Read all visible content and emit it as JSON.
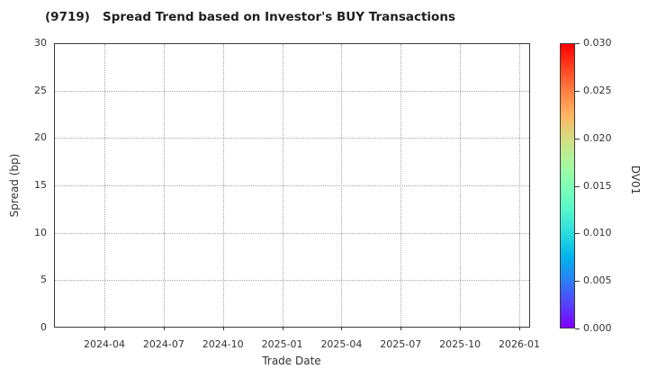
{
  "chart_data": {
    "type": "scatter",
    "title": "(9719)   Spread Trend based on Investor's BUY Transactions",
    "xlabel": "Trade Date",
    "ylabel": "Spread (bp)",
    "x_tick_labels": [
      "2024-04",
      "2024-07",
      "2024-10",
      "2025-01",
      "2025-04",
      "2025-07",
      "2025-10",
      "2026-01"
    ],
    "y_tick_labels": [
      "0",
      "5",
      "10",
      "15",
      "20",
      "25",
      "30"
    ],
    "ylim": [
      0,
      30
    ],
    "grid": "dotted",
    "legend": "none",
    "series": [],
    "colorbar": {
      "label": "DV01",
      "tick_labels": [
        "0.000",
        "0.005",
        "0.010",
        "0.015",
        "0.020",
        "0.025",
        "0.030"
      ],
      "range": [
        0.0,
        0.03
      ],
      "colormap": "rainbow",
      "gradient_stops_bottom_to_top": [
        "#8000ff",
        "#5542fd",
        "#2a80f6",
        "#00b4ec",
        "#2adddd",
        "#55f6ca",
        "#80ffb4",
        "#aaf69b",
        "#d4dd80",
        "#ffb462",
        "#ff8042",
        "#ff4221",
        "#ff0000"
      ]
    }
  }
}
